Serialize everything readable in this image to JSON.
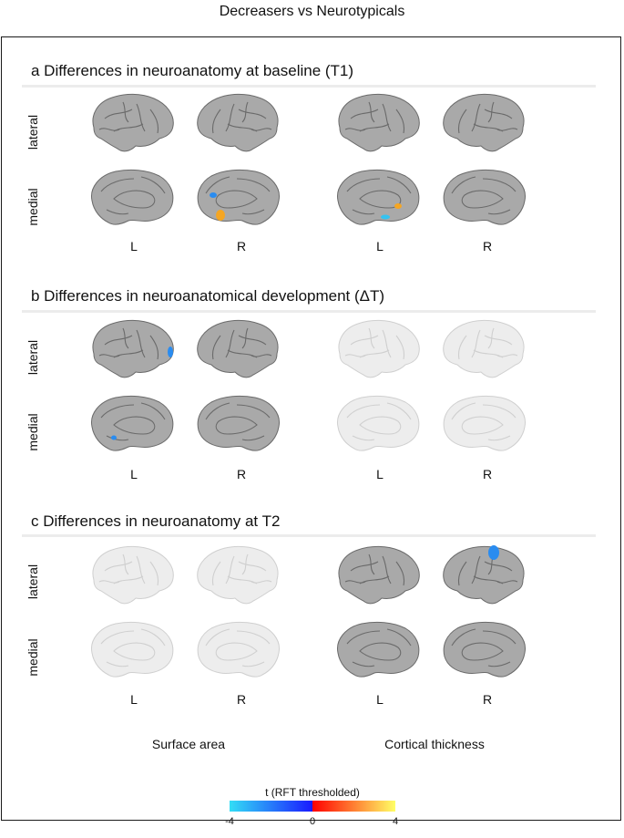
{
  "title": "Decreasers vs Neurotypicals",
  "sections": [
    {
      "label": "a Differences in neuroanatomy at baseline (T1)"
    },
    {
      "label": "b Differences in neuroanatomical development (ΔT)"
    },
    {
      "label": "c Differences in neuroanatomy at T2"
    }
  ],
  "views": {
    "lateral": "lateral",
    "medial": "medial"
  },
  "hemispheres": {
    "left": "L",
    "right": "R"
  },
  "columns": {
    "surface_area": "Surface area",
    "cortical_thickness": "Cortical thickness"
  },
  "colorbar": {
    "title": "t (RFT thresholded)",
    "min_label": "-4",
    "mid_label": "0",
    "max_label": "4",
    "colors": {
      "neg_low": "#33ddf5",
      "neg_high": "#1a1aff",
      "pos_low": "#ff0000",
      "pos_high": "#ffff66"
    }
  },
  "brain_colors": {
    "active": "#a9a9a9",
    "faded": "#ededed"
  },
  "panels": {
    "a_sa": {
      "shade": "active"
    },
    "a_ct": {
      "shade": "active"
    },
    "b_sa": {
      "shade": "active"
    },
    "b_ct": {
      "shade": "faded"
    },
    "c_sa": {
      "shade": "faded"
    },
    "c_ct": {
      "shade": "active"
    }
  }
}
